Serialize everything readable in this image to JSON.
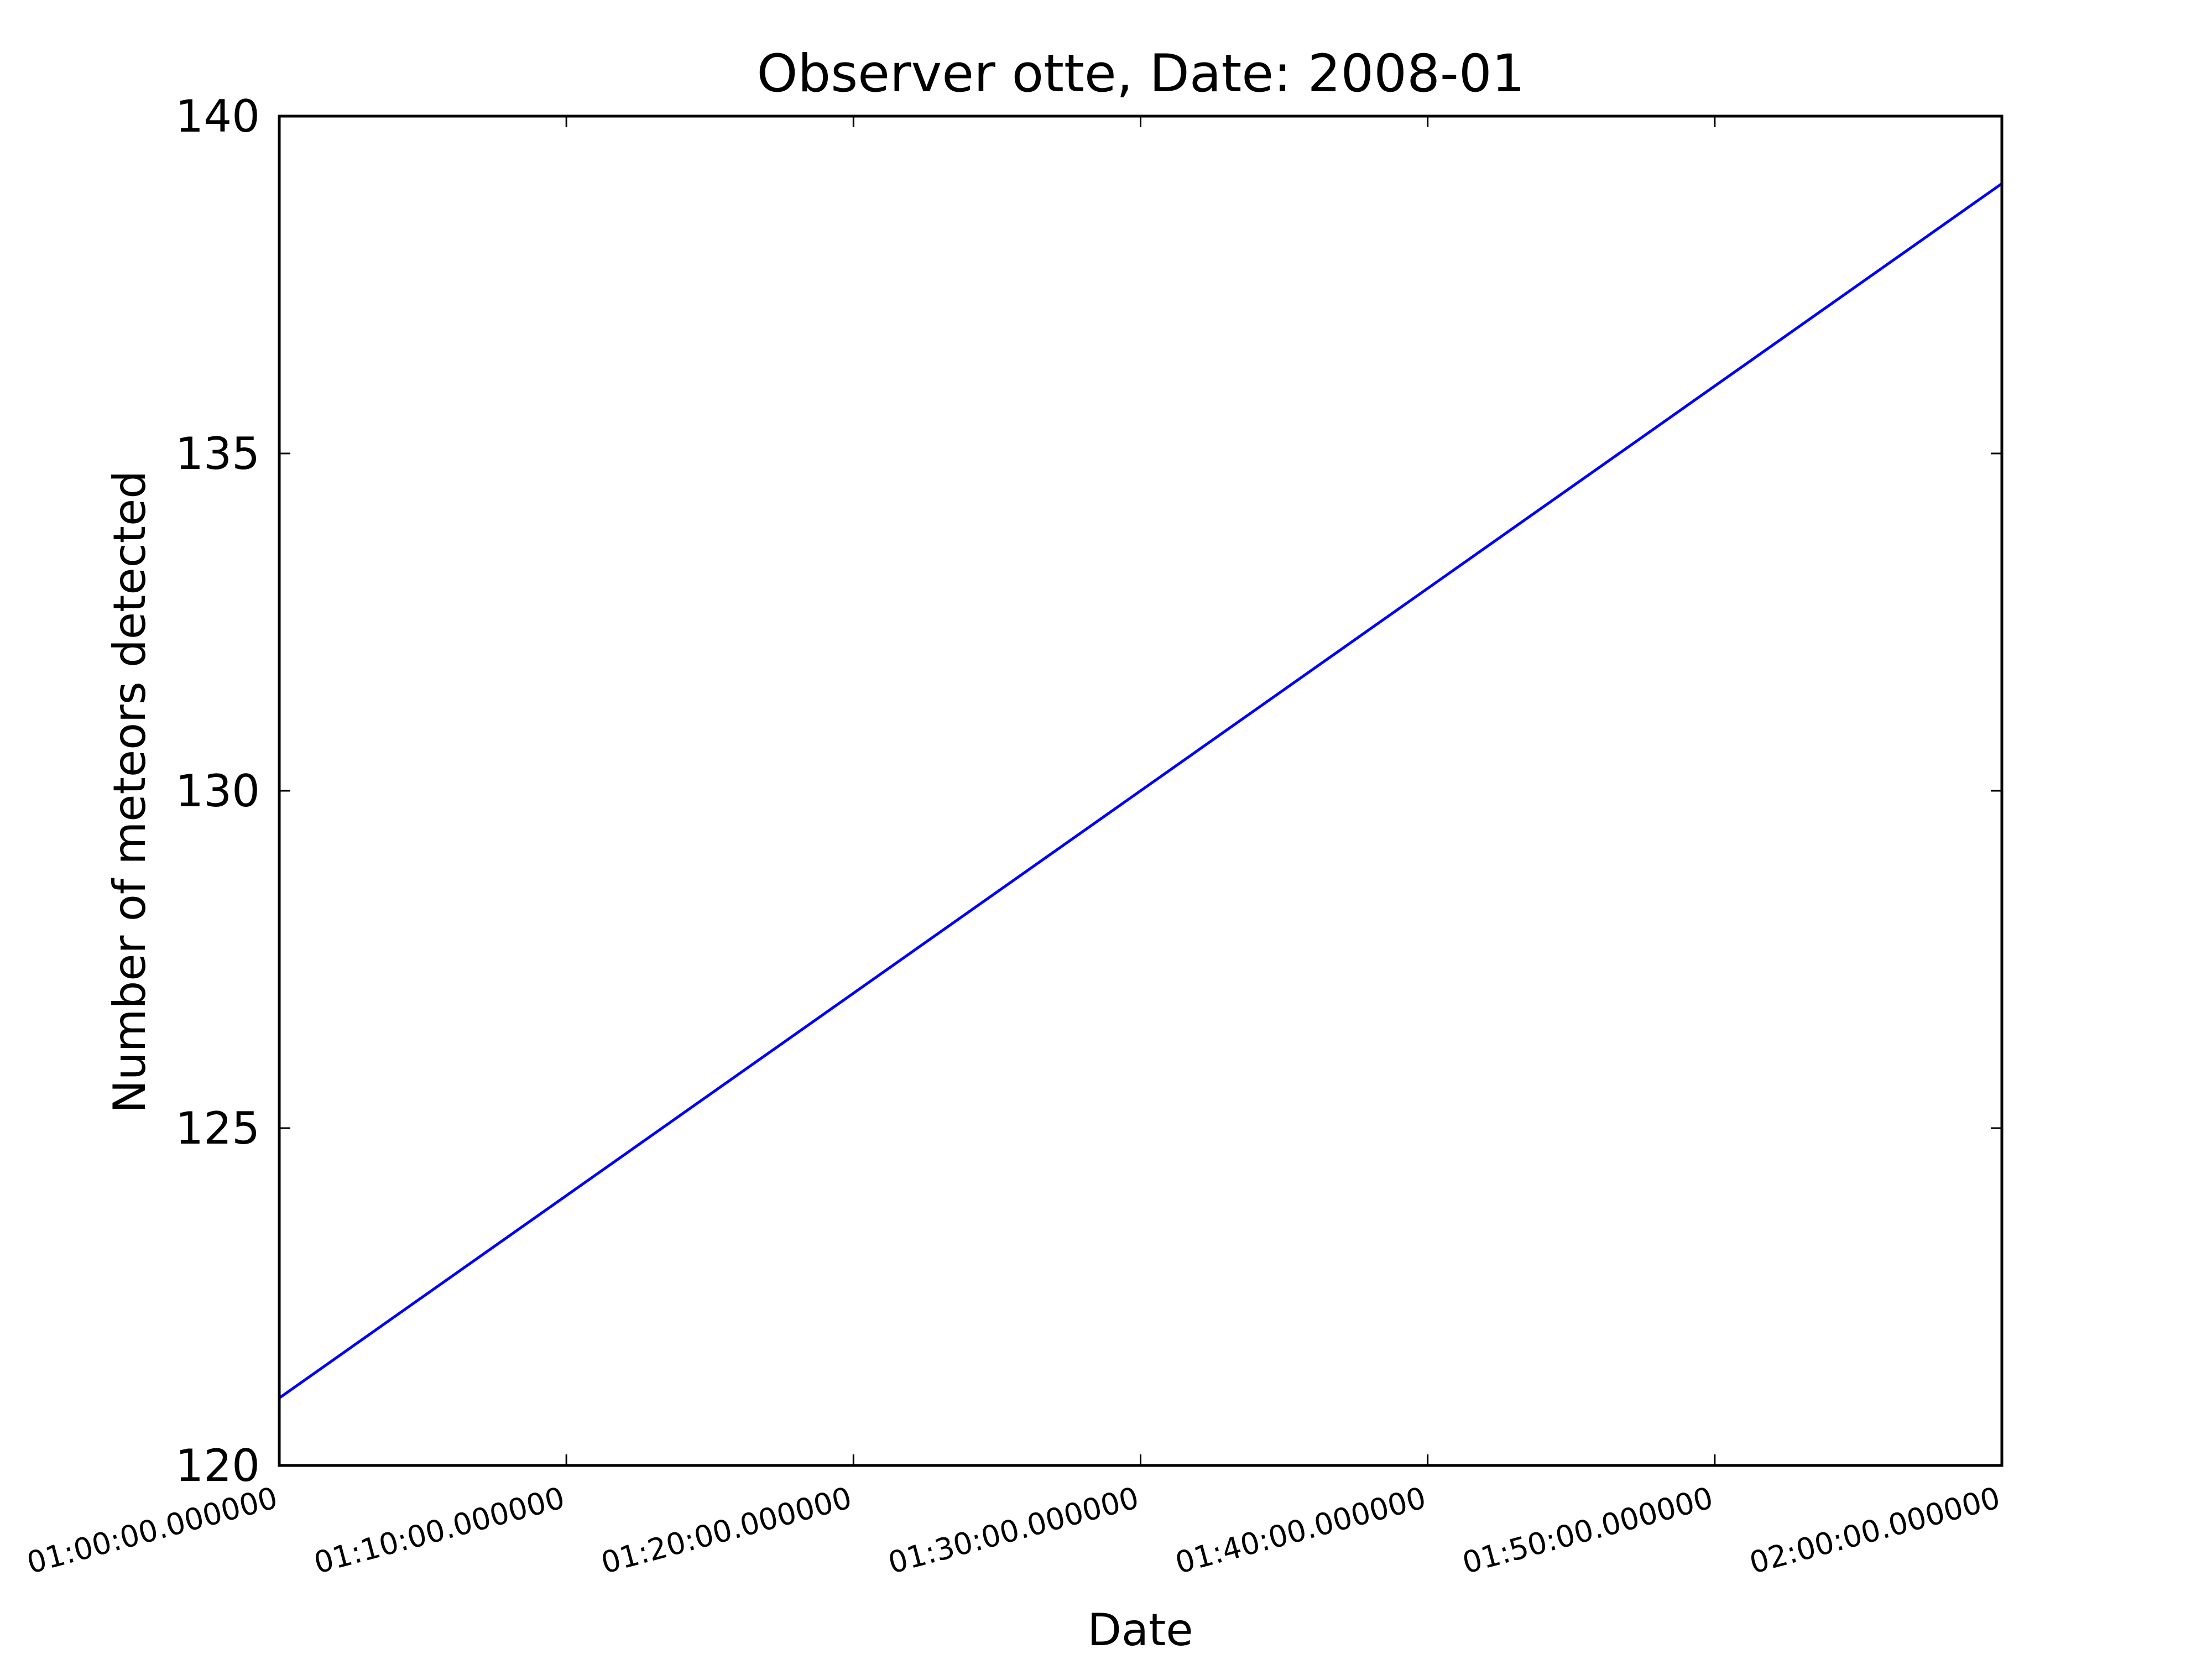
{
  "chart_data": {
    "type": "line",
    "title": "Observer otte, Date: 2008-01",
    "xlabel": "Date",
    "ylabel": "Number of meteors detected",
    "x_tick_labels": [
      "01:00:00.000000",
      "01:10:00.000000",
      "01:20:00.000000",
      "01:30:00.000000",
      "01:40:00.000000",
      "01:50:00.000000",
      "02:00:00.000000"
    ],
    "x_ticks_minutes": [
      0,
      10,
      20,
      30,
      40,
      50,
      60
    ],
    "y_ticks": [
      120,
      125,
      130,
      135,
      140
    ],
    "xlim": [
      "01:00:00.000000",
      "02:00:00.000000"
    ],
    "ylim": [
      120,
      140
    ],
    "grid": false,
    "series": [
      {
        "color": "#0000ff",
        "x": [
          "01:00:00.000000",
          "02:00:00.000000"
        ],
        "y": [
          121,
          139
        ]
      }
    ]
  }
}
